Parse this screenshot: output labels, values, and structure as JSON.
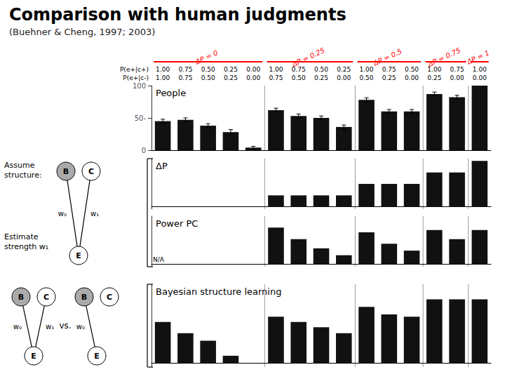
{
  "chart_data": [
    {
      "type": "bar",
      "title": "Comparison with human judgments",
      "subtitle": "(Buehner & Cheng, 1997; 2003)",
      "groups": [
        {
          "label": "ΔP = 0",
          "size": 5,
          "color": "red"
        },
        {
          "label": "ΔP = 0.25",
          "size": 4,
          "color": "red"
        },
        {
          "label": "ΔP = 0.5",
          "size": 3,
          "color": "red"
        },
        {
          "label": "ΔP = 0.75",
          "size": 2,
          "color": "red"
        },
        {
          "label": "ΔP = 1",
          "size": 1,
          "color": "red"
        }
      ],
      "header_rows": [
        {
          "label": "P(e+|c+)",
          "values": [
            "1.00",
            "0.75",
            "0.50",
            "0.25",
            "0.00",
            "1.00",
            "0.75",
            "0.50",
            "0.25",
            "1.00",
            "0.75",
            "0.50",
            "1.00",
            "0.75",
            "1.00"
          ]
        },
        {
          "label": "P(e+|c-)",
          "values": [
            "1.00",
            "0.75",
            "0.50",
            "0.25",
            "0.00",
            "0.75",
            "0.50",
            "0.25",
            "0.00",
            "0.50",
            "0.25",
            "0.00",
            "0.25",
            "0.00",
            "0.00"
          ]
        }
      ],
      "panel_label": "People",
      "categories": [
        null,
        null,
        null,
        null,
        null,
        null,
        null,
        null,
        null,
        null,
        null,
        null,
        null,
        null,
        null
      ],
      "values": [
        45,
        47,
        38,
        28,
        4,
        62,
        53,
        50,
        36,
        78,
        60,
        60,
        87,
        82,
        100
      ],
      "errors": [
        3,
        3,
        3,
        4,
        2,
        3,
        3,
        3,
        3,
        3,
        3,
        3,
        3,
        3,
        0
      ],
      "color": "#111111",
      "ylim": [
        0,
        100
      ],
      "yticks": [
        0,
        {
          "value": 50,
          "label": "50-"
        },
        100
      ],
      "grid": false,
      "tick_labels": "y"
    },
    {
      "type": "bar",
      "panel_label": "ΔP",
      "side_text": "Assume\nstructure:",
      "diagrams": [
        {
          "nodes": [
            "B",
            "C",
            "E"
          ],
          "links": [
            {
              "source": "B",
              "target": "E",
              "label": "w₀"
            },
            {
              "source": "C",
              "target": "E",
              "label": "w₁"
            }
          ]
        }
      ],
      "categories": [
        null,
        null,
        null,
        null,
        null,
        null,
        null,
        null,
        null,
        null,
        null,
        null,
        null,
        null,
        null
      ],
      "values": [
        0,
        0,
        0,
        0,
        0,
        25,
        25,
        25,
        25,
        50,
        50,
        50,
        75,
        75,
        100
      ],
      "color": "#111111",
      "ylim": [
        -5,
        105
      ],
      "grid": false,
      "tick_labels": false
    },
    {
      "type": "bar",
      "panel_label": "Power PC",
      "side_text": "Estimate\nstrength w₁",
      "annotations": [
        "N/A"
      ],
      "categories": [
        null,
        null,
        null,
        null,
        null,
        null,
        null,
        null,
        null,
        null,
        null,
        null,
        null,
        null,
        null
      ],
      "values": [
        null,
        null,
        null,
        null,
        null,
        80,
        55,
        35,
        20,
        70,
        45,
        30,
        75,
        55,
        75
      ],
      "color": "#111111",
      "ylim": [
        -5,
        105
      ],
      "grid": false,
      "tick_labels": false
    },
    {
      "type": "bar",
      "panel_label": "Bayesian structure learning",
      "diagrams": [
        {
          "nodes": [
            "B",
            "C",
            "E"
          ],
          "links": [
            {
              "source": "B",
              "target": "E",
              "label": "w₀"
            },
            {
              "source": "C",
              "target": "E",
              "label": "w₁"
            }
          ]
        },
        {
          "nodes": [
            "B",
            "C",
            "E"
          ],
          "links": [
            {
              "source": "B",
              "target": "E",
              "label": "w₀"
            }
          ]
        }
      ],
      "diagram_separator": "vs.",
      "categories": [
        null,
        null,
        null,
        null,
        null,
        null,
        null,
        null,
        null,
        null,
        null,
        null,
        null,
        null,
        null
      ],
      "values": [
        55,
        40,
        30,
        10,
        0,
        62,
        55,
        48,
        40,
        75,
        65,
        62,
        85,
        85,
        85
      ],
      "color": "#111111",
      "ylim": [
        -5,
        105
      ],
      "grid": false,
      "tick_labels": false
    }
  ]
}
